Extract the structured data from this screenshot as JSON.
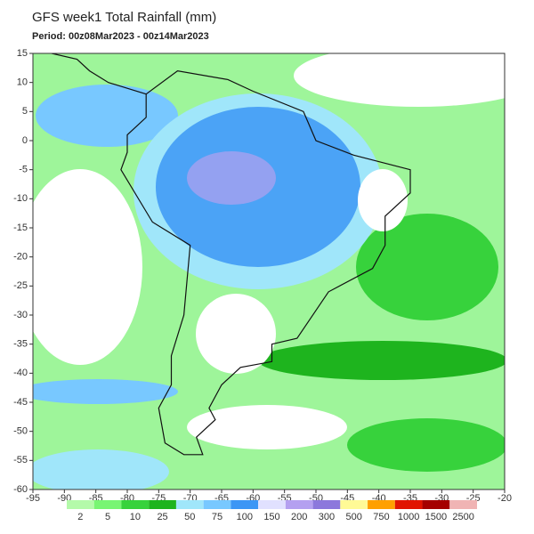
{
  "title": "GFS week1 Total Rainfall (mm)",
  "period": "Period: 00z08Mar2023 - 00z14Mar2023",
  "lat_ticks": [
    15,
    10,
    5,
    0,
    -5,
    -10,
    -15,
    -20,
    -25,
    -30,
    -35,
    -40,
    -45,
    -50,
    -55,
    -60
  ],
  "lon_ticks": [
    -95,
    -90,
    -85,
    -80,
    -75,
    -70,
    -65,
    -60,
    -55,
    -50,
    -45,
    -40,
    -35,
    -30,
    -25,
    -20
  ],
  "colorbar": {
    "levels": [
      2,
      5,
      10,
      25,
      50,
      75,
      100,
      150,
      200,
      300,
      500,
      750,
      1000,
      1500,
      2500
    ],
    "colors": [
      "#b4faaa",
      "#78f573",
      "#37d23c",
      "#1eb41e",
      "#a0e6fa",
      "#78c8ff",
      "#3c96f5",
      "#e1e1ff",
      "#b4a0f0",
      "#8c78dc",
      "#fffa96",
      "#ffa000",
      "#e11400",
      "#a50000",
      "#f0b4b4"
    ]
  }
}
